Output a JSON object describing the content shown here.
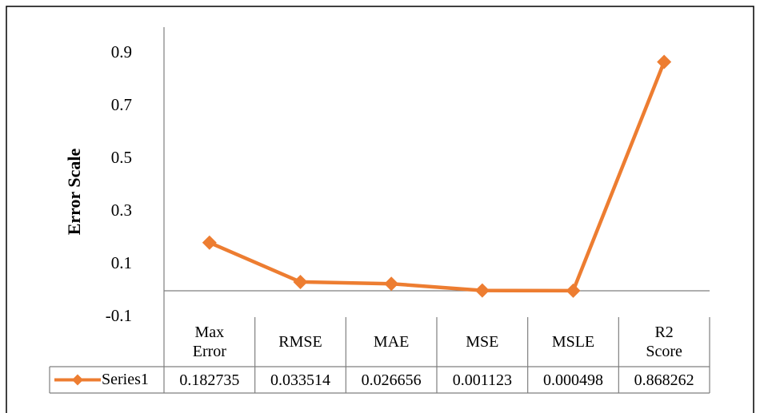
{
  "chart_data": {
    "type": "line",
    "y_label": "Error Scale",
    "categories": [
      "Max Error",
      "RMSE",
      "MAE",
      "MSE",
      "MSLE",
      "R2 Score"
    ],
    "series": [
      {
        "name": "Series1",
        "color": "#ED7D31",
        "values": [
          0.182735,
          0.033514,
          0.026656,
          0.001123,
          0.000498,
          0.868262
        ]
      }
    ],
    "ylim": [
      -0.1,
      1.0
    ],
    "yticks": [
      -0.1,
      0.1,
      0.3,
      0.5,
      0.7,
      0.9
    ],
    "data_table": true
  }
}
